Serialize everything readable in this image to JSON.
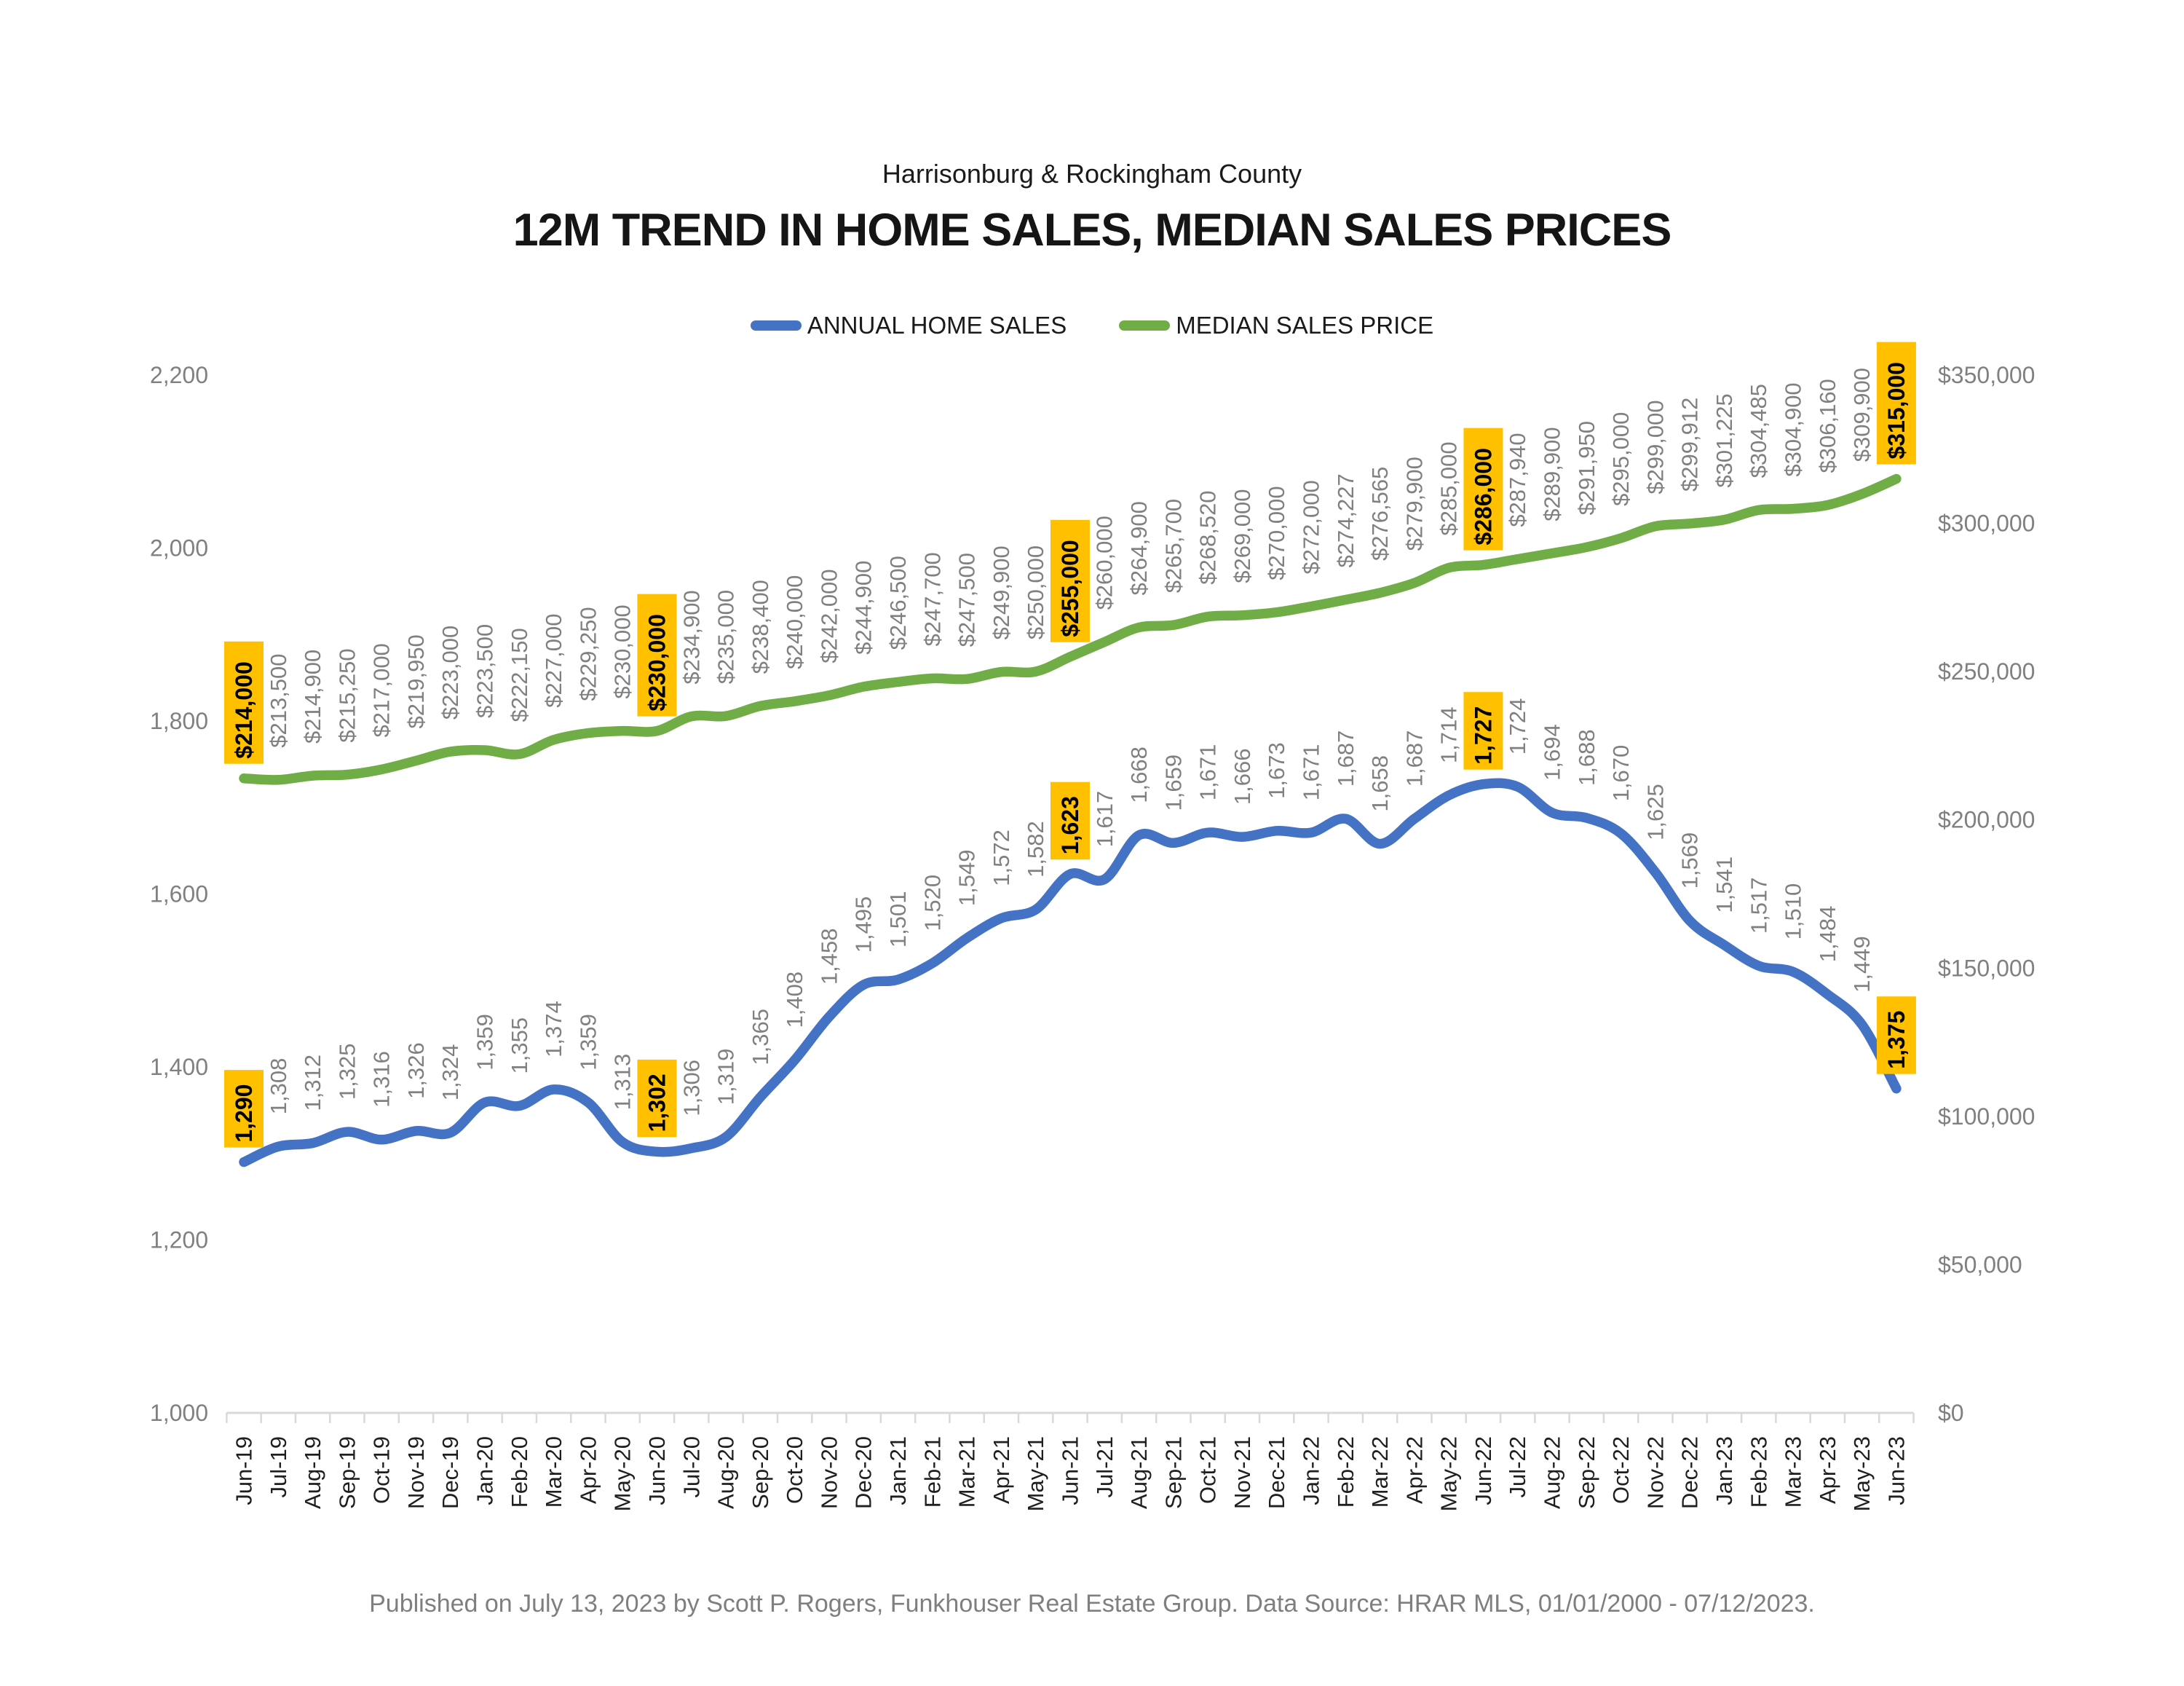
{
  "header": {
    "subtitle": "Harrisonburg & Rockingham County",
    "title": "12M TREND IN HOME SALES, MEDIAN SALES PRICES"
  },
  "legend": [
    {
      "label": "ANNUAL HOME SALES",
      "color": "#4472C4"
    },
    {
      "label": "MEDIAN SALES PRICE",
      "color": "#70AD47"
    }
  ],
  "footer": {
    "text": "Published on July 13, 2023 by Scott P. Rogers, Funkhouser Real Estate Group. Data Source: HRAR MLS, 01/01/2000 - 07/12/2023."
  },
  "chart_data": {
    "type": "line",
    "title": "12M TREND IN HOME SALES, MEDIAN SALES PRICES",
    "subtitle": "Harrisonburg & Rockingham County",
    "grid": false,
    "legend_position": "top",
    "categories": [
      "Jun-19",
      "Jul-19",
      "Aug-19",
      "Sep-19",
      "Oct-19",
      "Nov-19",
      "Dec-19",
      "Jan-20",
      "Feb-20",
      "Mar-20",
      "Apr-20",
      "May-20",
      "Jun-20",
      "Jul-20",
      "Aug-20",
      "Sep-20",
      "Oct-20",
      "Nov-20",
      "Dec-20",
      "Jan-21",
      "Feb-21",
      "Mar-21",
      "Apr-21",
      "May-21",
      "Jun-21",
      "Jul-21",
      "Aug-21",
      "Sep-21",
      "Oct-21",
      "Nov-21",
      "Dec-21",
      "Jan-22",
      "Feb-22",
      "Mar-22",
      "Apr-22",
      "May-22",
      "Jun-22",
      "Jul-22",
      "Aug-22",
      "Sep-22",
      "Oct-22",
      "Nov-22",
      "Dec-22",
      "Jan-23",
      "Feb-23",
      "Mar-23",
      "Apr-23",
      "May-23",
      "Jun-23"
    ],
    "series": [
      {
        "name": "ANNUAL HOME SALES",
        "axis": "left",
        "color": "#4472C4",
        "values": [
          1290,
          1308,
          1312,
          1325,
          1316,
          1326,
          1324,
          1359,
          1355,
          1374,
          1359,
          1313,
          1302,
          1306,
          1319,
          1365,
          1408,
          1458,
          1495,
          1501,
          1520,
          1549,
          1572,
          1582,
          1623,
          1617,
          1668,
          1659,
          1671,
          1666,
          1673,
          1671,
          1687,
          1658,
          1687,
          1714,
          1727,
          1724,
          1694,
          1688,
          1670,
          1625,
          1569,
          1541,
          1517,
          1510,
          1484,
          1449,
          1375
        ]
      },
      {
        "name": "MEDIAN SALES PRICE",
        "axis": "right",
        "color": "#70AD47",
        "values": [
          214000,
          213500,
          214900,
          215250,
          217000,
          219950,
          223000,
          223500,
          222150,
          227000,
          229250,
          230000,
          230000,
          234900,
          235000,
          238400,
          240000,
          242000,
          244900,
          246500,
          247700,
          247500,
          249900,
          250000,
          255000,
          260000,
          264900,
          265700,
          268520,
          269000,
          270000,
          272000,
          274227,
          276565,
          279900,
          285000,
          286000,
          287940,
          289900,
          291950,
          295000,
          299000,
          299912,
          301225,
          304485,
          304900,
          306160,
          309900,
          315000
        ]
      }
    ],
    "highlighted_indices": [
      0,
      12,
      24,
      36,
      48
    ],
    "left_axis": {
      "min": 1000,
      "max": 2200,
      "step": 200,
      "tick_labels": [
        "1,000",
        "1,200",
        "1,400",
        "1,600",
        "1,800",
        "2,000",
        "2,200"
      ]
    },
    "right_axis": {
      "min": 0,
      "max": 350000,
      "step": 50000,
      "tick_labels": [
        "$0",
        "$50,000",
        "$100,000",
        "$150,000",
        "$200,000",
        "$250,000",
        "$300,000",
        "$350,000"
      ]
    },
    "styles": {
      "highlight_bg": "#FFC000",
      "highlight_text": "#000000",
      "data_label_color": "#808080",
      "axis_label_color": "#808080",
      "month_label_color": "#1F1F1F",
      "axis_line_color": "#D9D9D9",
      "line_width": 13.5
    }
  }
}
